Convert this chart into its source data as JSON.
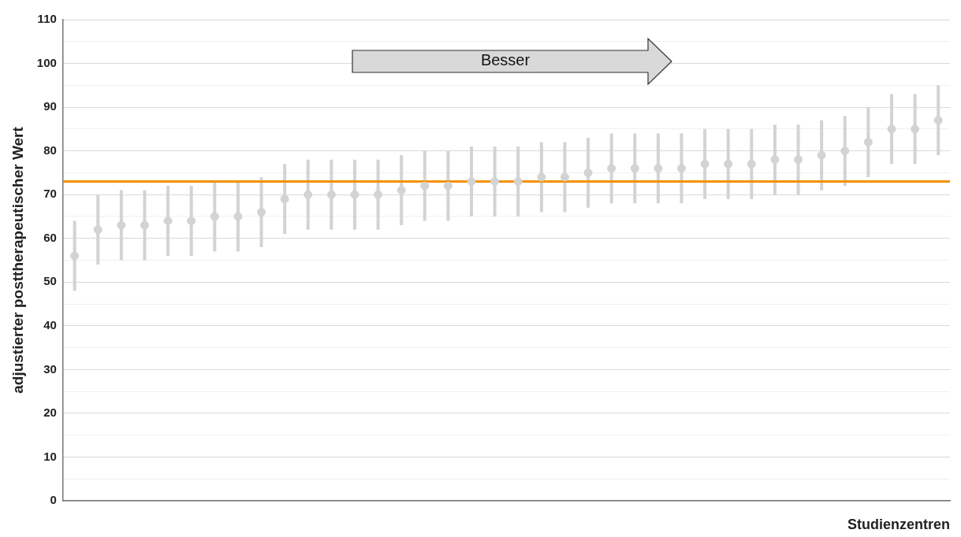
{
  "chart_data": {
    "type": "scatter",
    "ylabel": "adjustierter posttherapeutischer Wert",
    "xlabel": "Studienzentren",
    "annotations": [
      "Besser"
    ],
    "categories": [
      null,
      null,
      null,
      null,
      null,
      null,
      null,
      null,
      null,
      null,
      null,
      null,
      null,
      null,
      null,
      null,
      null,
      null,
      null,
      null,
      null,
      null,
      null,
      null,
      null,
      null,
      null,
      null,
      null,
      null,
      null,
      null,
      null,
      null,
      null,
      null,
      null,
      null
    ],
    "series": [
      {
        "color": "#d3d3d3",
        "values": [
          56,
          62,
          63,
          63,
          64,
          64,
          65,
          65,
          66,
          69,
          70,
          70,
          70,
          70,
          71,
          72,
          72,
          73,
          73,
          73,
          74,
          74,
          75,
          76,
          76,
          76,
          76,
          77,
          77,
          77,
          78,
          78,
          79,
          80,
          82,
          85,
          85,
          87
        ],
        "errors": [
          8,
          8,
          8,
          8,
          8,
          8,
          8,
          8,
          8,
          8,
          8,
          8,
          8,
          8,
          8,
          8,
          8,
          8,
          8,
          8,
          8,
          8,
          8,
          8,
          8,
          8,
          8,
          8,
          8,
          8,
          8,
          8,
          8,
          8,
          8,
          8,
          8,
          8
        ]
      }
    ],
    "ylim": [
      0,
      110
    ],
    "yticks": [
      0,
      {
        "value": 5,
        "label": null
      },
      10,
      {
        "value": 15,
        "label": null
      },
      20,
      {
        "value": 25,
        "label": null
      },
      30,
      {
        "value": 35,
        "label": null
      },
      40,
      {
        "value": 45,
        "label": null
      },
      50,
      {
        "value": 55,
        "label": null
      },
      60,
      {
        "value": 65,
        "label": null
      },
      70,
      {
        "value": 75,
        "label": null
      },
      80,
      {
        "value": 85,
        "label": null
      },
      90,
      {
        "value": 95,
        "label": null
      },
      100,
      {
        "value": 105,
        "label": null
      },
      110
    ],
    "ref_lines": [
      {
        "axis": "y",
        "value": 73,
        "color": "#f39200"
      }
    ],
    "grid": "y",
    "legend": false,
    "marker": "circle"
  }
}
